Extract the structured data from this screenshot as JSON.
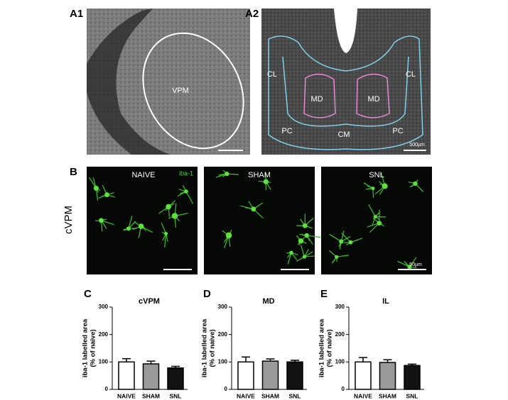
{
  "labels": {
    "a1": "A1",
    "a2": "A2",
    "b": "B",
    "c": "C",
    "d": "D",
    "e": "E"
  },
  "a1": {
    "region": "VPM"
  },
  "a2": {
    "regions": [
      "CL",
      "CL",
      "MD",
      "MD",
      "PC",
      "PC",
      "CM"
    ],
    "scale": "500µm"
  },
  "b": {
    "row": "cVPM",
    "stain": "iba-1",
    "images": [
      "NAIVE",
      "SHAM",
      "SNL"
    ],
    "scale": "50µm"
  },
  "chart_data": [
    {
      "type": "bar",
      "title": "cVPM",
      "categories": [
        "NAIVE",
        "SHAM",
        "SNL"
      ],
      "values": [
        100,
        93,
        78
      ],
      "errors": [
        12,
        10,
        6
      ],
      "colors": [
        "#ffffff",
        "#999999",
        "#111111"
      ],
      "ylabel": [
        "iba-1 labelled area",
        "(% of naive)"
      ],
      "ylim": [
        0,
        300
      ],
      "yticks": [
        0,
        100,
        200,
        300
      ]
    },
    {
      "type": "bar",
      "title": "MD",
      "categories": [
        "NAIVE",
        "SHAM",
        "SNL"
      ],
      "values": [
        100,
        103,
        100
      ],
      "errors": [
        18,
        8,
        6
      ],
      "colors": [
        "#ffffff",
        "#999999",
        "#111111"
      ],
      "ylabel": [
        "iba-1 labelled area",
        "(% of naive)"
      ],
      "ylim": [
        0,
        300
      ],
      "yticks": [
        0,
        100,
        200,
        300
      ]
    },
    {
      "type": "bar",
      "title": "IL",
      "categories": [
        "NAIVE",
        "SHAM",
        "SNL"
      ],
      "values": [
        100,
        98,
        87
      ],
      "errors": [
        16,
        10,
        5
      ],
      "colors": [
        "#ffffff",
        "#999999",
        "#111111"
      ],
      "ylabel": [
        "iba-1 labelled area",
        "(% of naive)"
      ],
      "ylim": [
        0,
        300
      ],
      "yticks": [
        0,
        100,
        200,
        300
      ]
    }
  ]
}
